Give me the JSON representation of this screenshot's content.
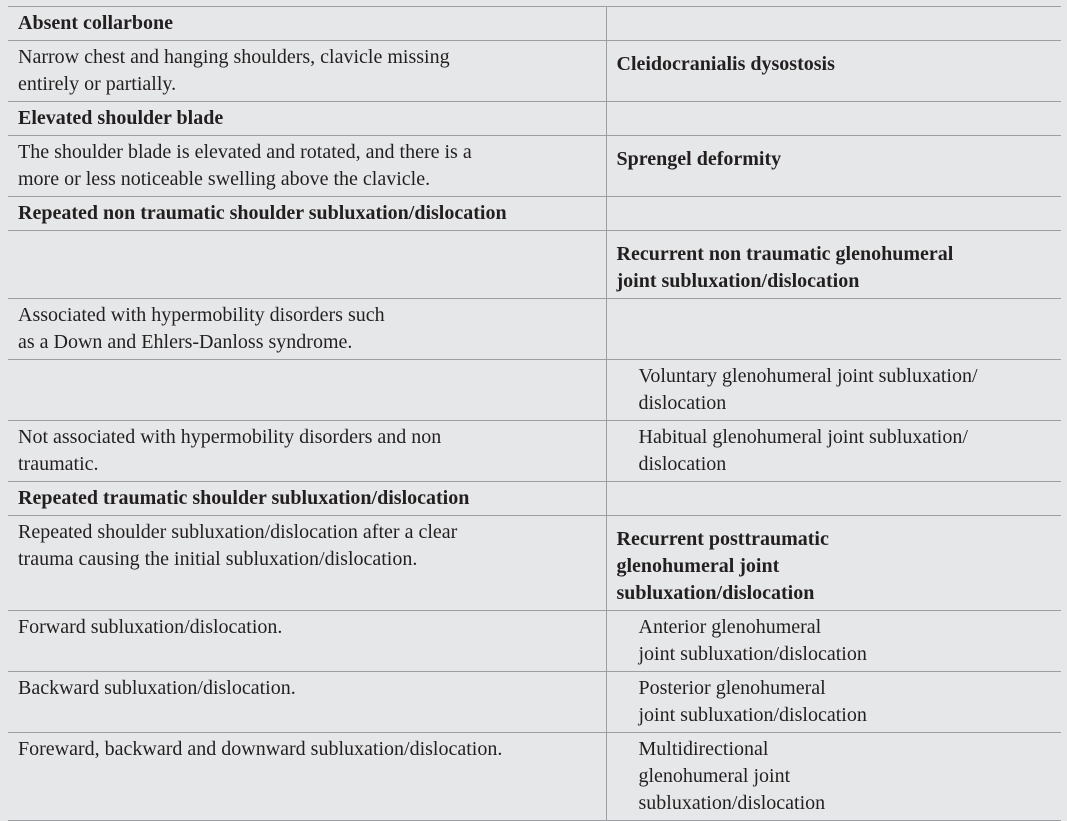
{
  "rows": [
    {
      "left": "Absent collarbone",
      "right": "",
      "left_bold": true
    },
    {
      "left": "Narrow chest and hanging shoulders, clavicle missing\nentirely or partially.",
      "right": "Cleidocranialis dysostosis",
      "right_bold": true
    },
    {
      "left": "Elevated shoulder blade",
      "right": "",
      "left_bold": true
    },
    {
      "left": "The shoulder blade is elevated and rotated, and there is a\nmore or less noticeable swelling above the clavicle.",
      "right": "Sprengel deformity",
      "right_bold": true
    },
    {
      "left": "Repeated non traumatic shoulder subluxation/dislocation",
      "right": "",
      "left_bold": true
    },
    {
      "left": "",
      "right": "Recurrent non traumatic glenohumeral\njoint subluxation/dislocation",
      "right_bold": true
    },
    {
      "left": "Associated with hypermobility disorders such\nas a Down and Ehlers-Danloss syndrome.",
      "right": ""
    },
    {
      "left": "",
      "right": "Voluntary glenohumeral joint subluxation/\ndislocation",
      "right_indent": true
    },
    {
      "left": "Not associated with hypermobility disorders and non\ntraumatic.",
      "right": "Habitual glenohumeral joint subluxation/\ndislocation",
      "right_indent": true
    },
    {
      "left": "Repeated traumatic shoulder subluxation/dislocation",
      "right": "",
      "left_bold": true
    },
    {
      "left": "Repeated shoulder subluxation/dislocation after a clear\ntrauma causing the initial subluxation/dislocation.",
      "right": "Recurrent posttraumatic\nglenohumeral joint\nsubluxation/dislocation",
      "right_bold": true
    },
    {
      "left": "Forward subluxation/dislocation.",
      "right": "Anterior glenohumeral\njoint subluxation/dislocation",
      "right_indent": true
    },
    {
      "left": "Backward subluxation/dislocation.",
      "right": "Posterior glenohumeral\njoint subluxation/dislocation",
      "right_indent": true
    },
    {
      "left": "Foreward, backward and downward subluxation/dislocation.",
      "right": "Multidirectional\nglenohumeral joint\nsubluxation/dislocation",
      "right_indent": true
    }
  ]
}
